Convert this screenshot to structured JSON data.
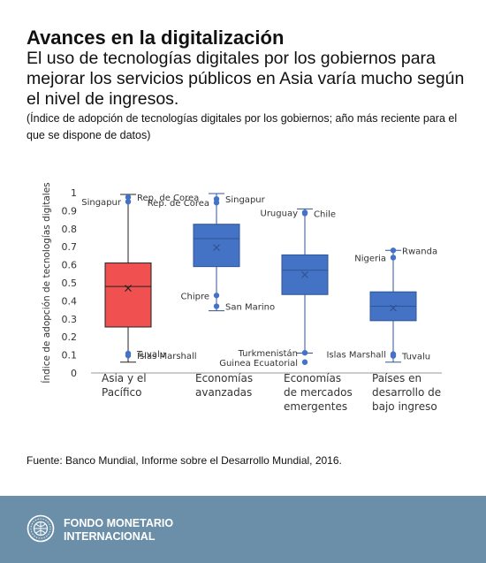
{
  "header": {
    "title": "Avances en la digitalización",
    "subtitle": "El uso de tecnologías digitales por los gobiernos para mejorar los servicios públicos en Asia varía mucho según el nivel de ingresos.",
    "note": "(Índice de adopción de tecnologías digitales por los gobiernos; año más reciente para el que se dispone de datos)"
  },
  "source": "Fuente: Banco Mundial, Informe sobre el Desarrollo Mundial, 2016.",
  "footer": {
    "org_line1": "FONDO MONETARIO",
    "org_line2": "INTERNACIONAL",
    "logo_icon": "imf-seal-icon"
  },
  "colors": {
    "asia_box": "#f05050",
    "other_box": "#4472c4",
    "footer_bg": "#6b8fa9"
  },
  "chart_data": {
    "type": "boxplot",
    "ylabel": "Índice de adopción de tecnologías digitales",
    "ylim": [
      0,
      1
    ],
    "yticks": [
      "0",
      "0.1",
      "0.2",
      "0.3",
      "0.4",
      "0.5",
      "0.6",
      "0.7",
      "0.8",
      "0.9",
      "1"
    ],
    "grid": false,
    "groups": [
      {
        "label": [
          "Asia y el",
          "Pacífico"
        ],
        "color": "#f05050",
        "min": 0.06,
        "q1": 0.255,
        "median": 0.48,
        "q3": 0.61,
        "max": 0.99,
        "mean": 0.47,
        "points": [
          {
            "name": "Rep. de Corea",
            "y": 0.975,
            "label_pos": "right"
          },
          {
            "name": "Singapur",
            "y": 0.95,
            "label_pos": "left"
          },
          {
            "name": "Tuvalu",
            "y": 0.108,
            "label_pos": "right"
          },
          {
            "name": "Islas Marshall",
            "y": 0.097,
            "label_pos": "right"
          }
        ]
      },
      {
        "label": [
          "Economías",
          "avanzadas"
        ],
        "color": "#4472c4",
        "min": 0.345,
        "q1": 0.59,
        "median": 0.745,
        "q3": 0.825,
        "max": 0.995,
        "mean": 0.695,
        "points": [
          {
            "name": "Singapur",
            "y": 0.965,
            "label_pos": "right"
          },
          {
            "name": "Rep. de Corea",
            "y": 0.945,
            "label_pos": "left"
          },
          {
            "name": "Chipre",
            "y": 0.43,
            "label_pos": "left"
          },
          {
            "name": "San Marino",
            "y": 0.37,
            "label_pos": "right"
          }
        ]
      },
      {
        "label": [
          "Economías",
          "de mercados",
          "emergentes"
        ],
        "color": "#4472c4",
        "min": 0.11,
        "q1": 0.435,
        "median": 0.57,
        "q3": 0.655,
        "max": 0.91,
        "mean": 0.545,
        "points": [
          {
            "name": "Uruguay",
            "y": 0.89,
            "label_pos": "left"
          },
          {
            "name": "Chile",
            "y": 0.885,
            "label_pos": "right"
          },
          {
            "name": "Turkmenistán",
            "y": 0.112,
            "label_pos": "left"
          },
          {
            "name": "Guinea Ecuatorial",
            "y": 0.06,
            "label_pos": "left"
          }
        ]
      },
      {
        "label": [
          "Países en",
          "desarrollo de",
          "bajo ingreso"
        ],
        "color": "#4472c4",
        "min": 0.06,
        "q1": 0.29,
        "median": 0.37,
        "q3": 0.45,
        "max": 0.68,
        "mean": 0.36,
        "points": [
          {
            "name": "Rwanda",
            "y": 0.68,
            "label_pos": "right"
          },
          {
            "name": "Nigeria",
            "y": 0.64,
            "label_pos": "left"
          },
          {
            "name": "Islas Marshall",
            "y": 0.105,
            "label_pos": "left"
          },
          {
            "name": "Tuvalu",
            "y": 0.095,
            "label_pos": "right"
          }
        ]
      }
    ]
  }
}
